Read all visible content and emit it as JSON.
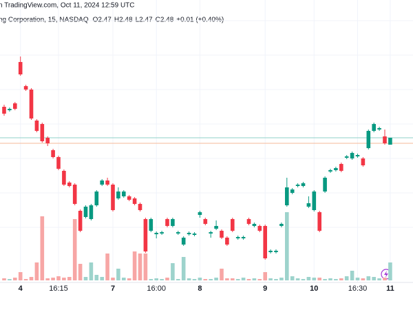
{
  "header": {
    "source": "n TradingView.com, Oct 11, 2024 12:59 UTC",
    "symbol": "ng Corporation, 15, NASDAQ",
    "ohlc": [
      "O2.47",
      "H2.48",
      "L2.47",
      "C2.48",
      "+0.01 (+0.40%)"
    ]
  },
  "chart_data": {
    "type": "candlestick",
    "categories": [
      null,
      null,
      null,
      "4",
      null,
      null,
      null,
      null,
      null,
      null,
      "16:15",
      null,
      null,
      null,
      null,
      null,
      null,
      null,
      null,
      null,
      "7",
      null,
      null,
      null,
      null,
      null,
      null,
      null,
      "16:00",
      null,
      null,
      null,
      null,
      null,
      null,
      null,
      "8",
      null,
      null,
      null,
      null,
      null,
      null,
      null,
      null,
      null,
      null,
      null,
      "9",
      null,
      null,
      null,
      null,
      null,
      null,
      null,
      null,
      "10",
      null,
      null,
      null,
      null,
      null,
      null,
      null,
      "16:30",
      null,
      null,
      null,
      null,
      null,
      "11"
    ],
    "open": [
      2.525,
      2.52,
      2.53,
      2.59,
      2.555,
      2.55,
      2.505,
      2.5,
      2.48,
      2.462,
      2.452,
      2.432,
      2.415,
      2.412,
      2.374,
      2.365,
      2.362,
      2.382,
      2.412,
      2.418,
      2.412,
      2.392,
      2.395,
      2.395,
      2.392,
      2.384,
      2.362,
      2.345,
      2.34,
      2.341,
      2.362,
      2.352,
      2.341,
      2.325,
      2.34,
      2.339,
      2.368,
      2.362,
      2.341,
      2.348,
      2.345,
      2.335,
      2.362,
      2.334,
      2.334,
      2.362,
      2.352,
      2.352,
      2.352,
      2.314,
      2.314,
      2.352,
      2.382,
      2.4,
      2.41,
      2.41,
      2.38,
      2.375,
      2.372,
      2.402,
      2.431,
      2.433,
      2.442,
      2.451,
      2.45,
      2.453,
      2.45,
      2.465,
      2.49,
      2.492,
      2.482,
      2.47
    ],
    "high": [
      2.528,
      2.524,
      2.532,
      2.598,
      2.557,
      2.552,
      2.507,
      2.502,
      2.482,
      2.464,
      2.454,
      2.434,
      2.417,
      2.414,
      2.376,
      2.382,
      2.384,
      2.404,
      2.42,
      2.422,
      2.414,
      2.408,
      2.404,
      2.397,
      2.394,
      2.386,
      2.364,
      2.364,
      2.344,
      2.345,
      2.364,
      2.364,
      2.345,
      2.337,
      2.344,
      2.343,
      2.374,
      2.364,
      2.345,
      2.36,
      2.347,
      2.337,
      2.364,
      2.338,
      2.338,
      2.364,
      2.357,
      2.354,
      2.354,
      2.318,
      2.318,
      2.357,
      2.422,
      2.407,
      2.414,
      2.416,
      2.395,
      2.404,
      2.374,
      2.424,
      2.435,
      2.438,
      2.444,
      2.455,
      2.46,
      2.457,
      2.452,
      2.492,
      2.502,
      2.496,
      2.492,
      2.48
    ],
    "low": [
      2.512,
      2.518,
      2.52,
      2.57,
      2.548,
      2.506,
      2.488,
      2.473,
      2.468,
      2.45,
      2.433,
      2.41,
      2.408,
      2.382,
      2.343,
      2.363,
      2.36,
      2.38,
      2.41,
      2.41,
      2.373,
      2.39,
      2.393,
      2.388,
      2.382,
      2.373,
      2.313,
      2.343,
      2.334,
      2.339,
      2.35,
      2.35,
      2.339,
      2.323,
      2.338,
      2.337,
      2.364,
      2.353,
      2.335,
      2.346,
      2.333,
      2.323,
      2.343,
      2.332,
      2.332,
      2.353,
      2.35,
      2.343,
      2.303,
      2.312,
      2.312,
      2.35,
      2.38,
      2.398,
      2.408,
      2.408,
      2.378,
      2.373,
      2.343,
      2.4,
      2.429,
      2.431,
      2.43,
      2.449,
      2.448,
      2.451,
      2.438,
      2.463,
      2.488,
      2.49,
      2.47,
      2.47
    ],
    "close": [
      2.515,
      2.522,
      2.522,
      2.572,
      2.55,
      2.508,
      2.49,
      2.475,
      2.472,
      2.452,
      2.435,
      2.412,
      2.41,
      2.384,
      2.345,
      2.38,
      2.382,
      2.402,
      2.418,
      2.412,
      2.375,
      2.402,
      2.402,
      2.39,
      2.384,
      2.375,
      2.315,
      2.362,
      2.342,
      2.343,
      2.352,
      2.362,
      2.343,
      2.335,
      2.342,
      2.341,
      2.372,
      2.355,
      2.343,
      2.352,
      2.335,
      2.325,
      2.345,
      2.336,
      2.336,
      2.355,
      2.355,
      2.345,
      2.305,
      2.316,
      2.316,
      2.355,
      2.408,
      2.405,
      2.412,
      2.414,
      2.385,
      2.402,
      2.345,
      2.422,
      2.433,
      2.436,
      2.432,
      2.453,
      2.458,
      2.455,
      2.44,
      2.49,
      2.5,
      2.494,
      2.472,
      2.48
    ],
    "volume": [
      30,
      20,
      40,
      120,
      20,
      50,
      260,
      930,
      30,
      40,
      60,
      40,
      50,
      890,
      240,
      50,
      260,
      80,
      50,
      390,
      40,
      170,
      40,
      30,
      420,
      390,
      390,
      20,
      30,
      20,
      40,
      250,
      20,
      340,
      30,
      20,
      40,
      20,
      20,
      40,
      170,
      30,
      30,
      20,
      40,
      20,
      30,
      20,
      120,
      30,
      20,
      40,
      990,
      60,
      30,
      20,
      50,
      40,
      40,
      20,
      30,
      20,
      30,
      60,
      140,
      40,
      30,
      60,
      50,
      30,
      40,
      260
    ],
    "ylim": [
      2.27,
      2.68
    ],
    "vlim": [
      0,
      1200
    ],
    "ygrid": [
      2.35,
      2.4,
      2.45,
      2.5,
      2.55,
      2.6,
      2.65
    ],
    "price_lines": [
      {
        "value": 2.48,
        "color": "#8fd1c9"
      },
      {
        "value": 2.472,
        "color": "#f6b99a"
      }
    ],
    "up_color": "#089981",
    "down_color": "#f23645",
    "up_volume_color": "#9dd3cc",
    "down_volume_color": "#f7a6a5",
    "grid": true
  }
}
